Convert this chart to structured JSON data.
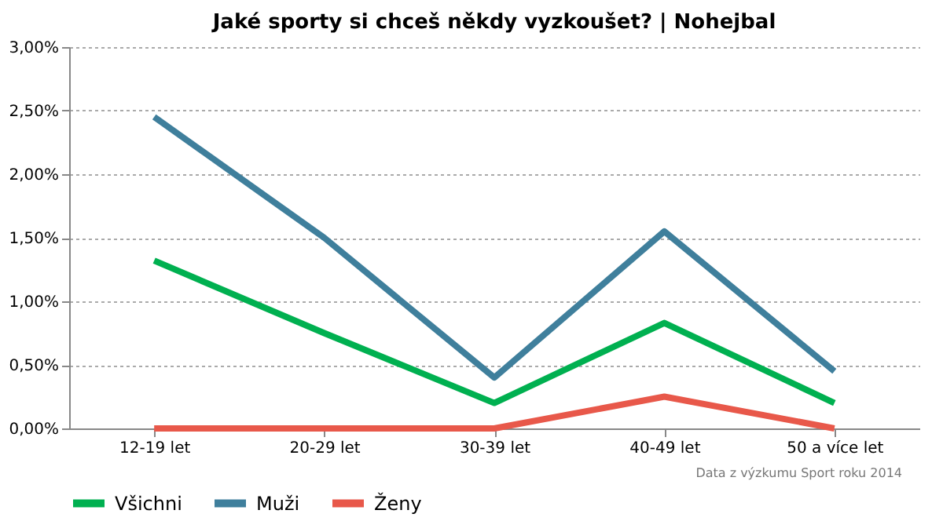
{
  "chart_data": {
    "type": "line",
    "title": "Jaké sporty si chceš někdy vyzkoušet? | Nohejbal",
    "categories": [
      "12-19 let",
      "20-29 let",
      "30-39 let",
      "40-49 let",
      "50 a více let"
    ],
    "series": [
      {
        "name": "Všichni",
        "color": "#00b050",
        "values": [
          1.32,
          0.75,
          0.2,
          0.83,
          0.2
        ]
      },
      {
        "name": "Muži",
        "color": "#3f7f9c",
        "values": [
          2.45,
          1.5,
          0.4,
          1.55,
          0.45
        ]
      },
      {
        "name": "Ženy",
        "color": "#e8584a",
        "values": [
          0,
          0,
          0,
          0.25,
          0
        ]
      }
    ],
    "ylim": [
      0,
      3
    ],
    "yticks": [
      {
        "value": 0,
        "label": "0,00%"
      },
      {
        "value": 0.5,
        "label": "0,50%"
      },
      {
        "value": 1,
        "label": "1,00%"
      },
      {
        "value": 1.5,
        "label": "1,50%"
      },
      {
        "value": 2,
        "label": "2,00%"
      },
      {
        "value": 2.5,
        "label": "2,50%"
      },
      {
        "value": 3,
        "label": "3,00%"
      }
    ],
    "grid": "y",
    "legend": "bottom",
    "marker": "none",
    "line_style": "solid",
    "annotations": [
      "Data z výzkumu Sport roku 2014"
    ]
  }
}
